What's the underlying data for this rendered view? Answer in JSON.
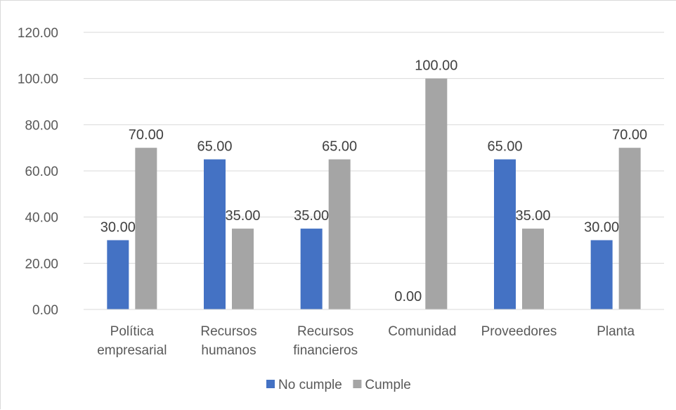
{
  "chart_data": {
    "type": "bar",
    "categories": [
      [
        "Política",
        "empresarial"
      ],
      [
        "Recursos",
        "humanos"
      ],
      [
        "Recursos",
        "financieros"
      ],
      [
        "Comunidad"
      ],
      [
        "Proveedores"
      ],
      [
        "Planta"
      ]
    ],
    "series": [
      {
        "name": "No cumple",
        "color": "#4472c4",
        "values": [
          30,
          65,
          35,
          0,
          65,
          30
        ],
        "labels": [
          "30.00",
          "65.00",
          "35.00",
          "0.00",
          "65.00",
          "30.00"
        ]
      },
      {
        "name": "Cumple",
        "color": "#a5a5a5",
        "values": [
          70,
          35,
          65,
          100,
          35,
          70
        ],
        "labels": [
          "70.00",
          "35.00",
          "65.00",
          "100.00",
          "35.00",
          "70.00"
        ]
      }
    ],
    "ylim": [
      0,
      120
    ],
    "yticks": [
      "0.00",
      "20.00",
      "40.00",
      "60.00",
      "80.00",
      "100.00",
      "120.00"
    ],
    "grid": true,
    "legend": "bottom"
  }
}
